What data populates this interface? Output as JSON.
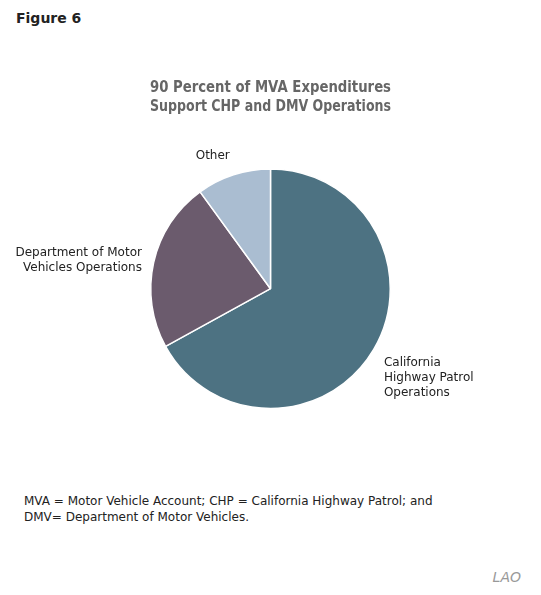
{
  "chart_data": {
    "type": "pie",
    "title": "90 Percent of MVA Expenditures\nSupport CHP and DMV Operations",
    "categories": [
      "California\nHighway Patrol\nOperations",
      "Department of Motor\nVehicles Operations",
      "Other"
    ],
    "values": [
      67,
      23,
      10
    ],
    "colors": [
      "#4d7282",
      "#6b5b6d",
      "#aabdd1"
    ],
    "annotations": [
      "Figure 6",
      "MVA = Motor Vehicle Account; CHP = California Highway Patrol; and\nDMV= Department of Motor Vehicles.",
      "LAO"
    ],
    "legend": false
  }
}
